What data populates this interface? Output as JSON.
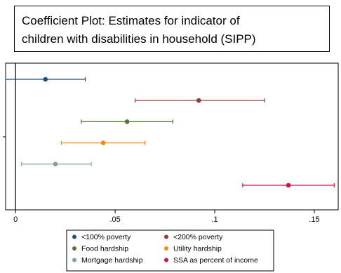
{
  "title": {
    "line1": "Coefficient Plot: Estimates for indicator of",
    "line2": "children with disabilities in household (SIPP)"
  },
  "chart_data": {
    "type": "coefficient_plot",
    "xlim": [
      -0.005,
      0.162
    ],
    "x_ticks": [
      {
        "value": 0,
        "label": "0"
      },
      {
        "value": 0.05,
        "label": ".05"
      },
      {
        "value": 0.1,
        "label": ".1"
      },
      {
        "value": 0.15,
        "label": ".15"
      }
    ],
    "zero_line": true,
    "grid": false,
    "legend_position": "bottom",
    "series": [
      {
        "name": "<100% poverty",
        "color": "#1f4e79",
        "estimate": 0.015,
        "ci_low": -0.005,
        "ci_high": 0.035
      },
      {
        "name": "<200% poverty",
        "color": "#9b3a3a",
        "estimate": 0.092,
        "ci_low": 0.06,
        "ci_high": 0.125
      },
      {
        "name": "Food hardship",
        "color": "#4f7a2e",
        "estimate": 0.056,
        "ci_low": 0.033,
        "ci_high": 0.079
      },
      {
        "name": "Utility hardship",
        "color": "#f28e00",
        "estimate": 0.044,
        "ci_low": 0.023,
        "ci_high": 0.065
      },
      {
        "name": "Mortgage hardship",
        "color": "#7aa39a",
        "estimate": 0.02,
        "ci_low": 0.003,
        "ci_high": 0.038
      },
      {
        "name": "SSA as percent of income",
        "color": "#d11149",
        "estimate": 0.137,
        "ci_low": 0.114,
        "ci_high": 0.16
      }
    ]
  }
}
